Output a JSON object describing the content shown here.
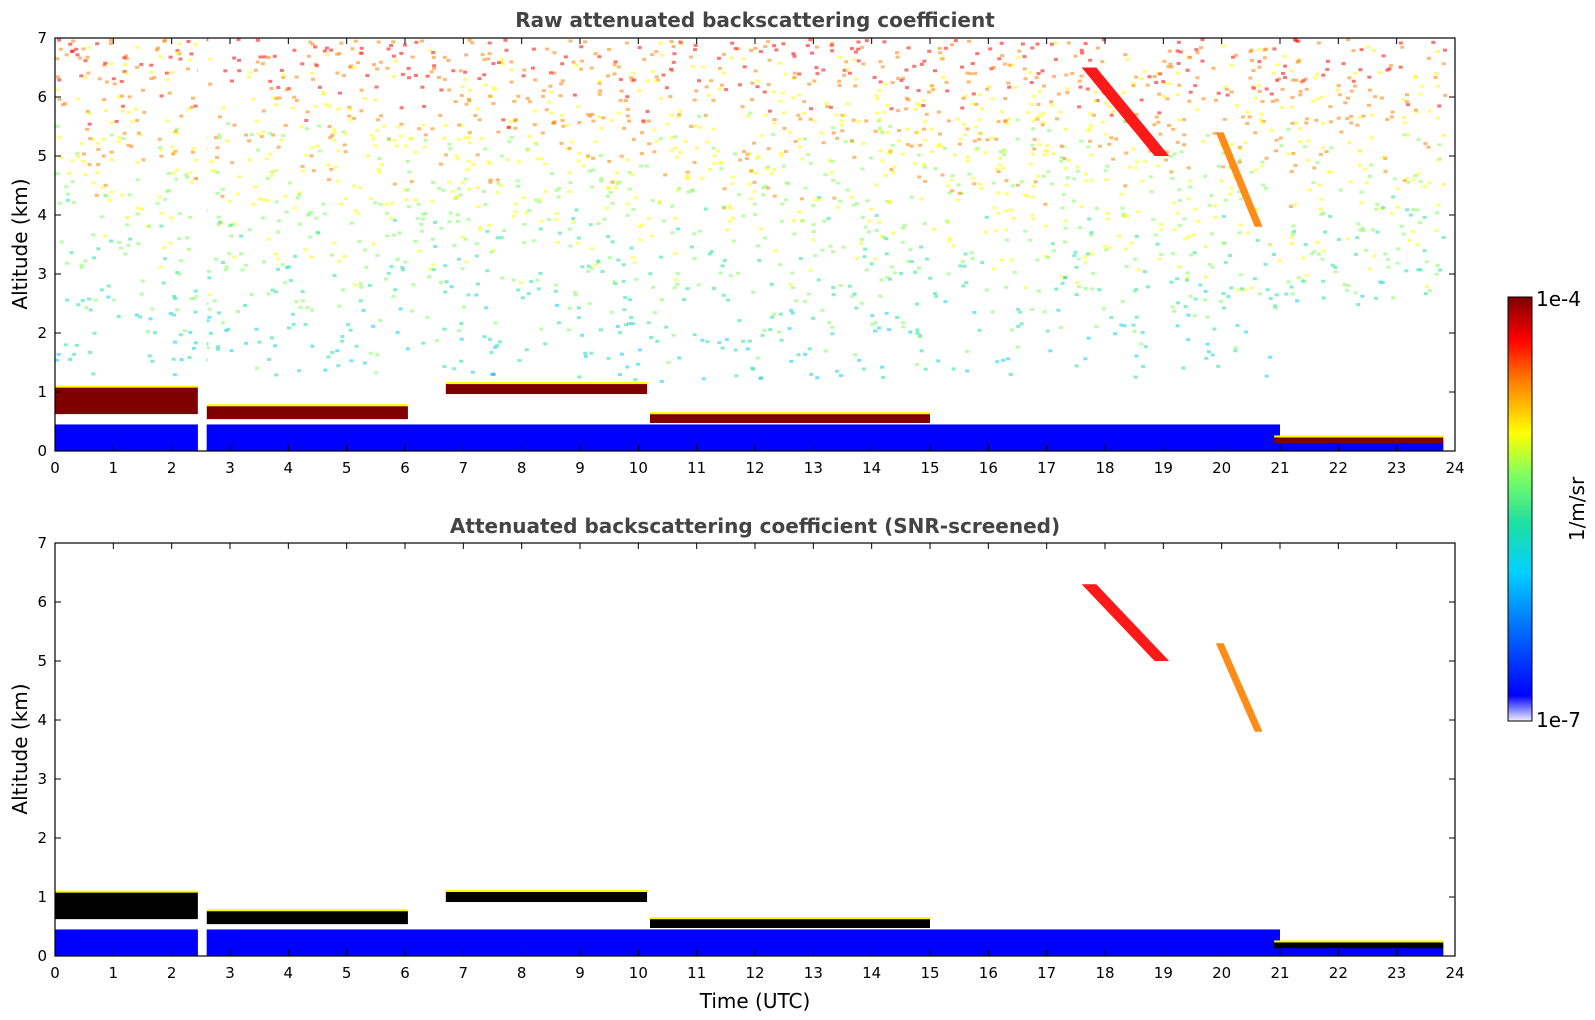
{
  "chart_data": [
    {
      "type": "heatmap",
      "title": "Raw attenuated backscattering coefficient",
      "ylabel": "Altitude (km)",
      "xlabel": "",
      "xlim": [
        0,
        24
      ],
      "ylim": [
        0,
        7
      ],
      "xticks": [
        "0",
        "1",
        "2",
        "3",
        "4",
        "5",
        "6",
        "7",
        "8",
        "9",
        "10",
        "11",
        "12",
        "13",
        "14",
        "15",
        "16",
        "17",
        "18",
        "19",
        "20",
        "21",
        "22",
        "23",
        "24"
      ],
      "yticks": [
        "0",
        "1",
        "2",
        "3",
        "4",
        "5",
        "6",
        "7"
      ],
      "screened": false,
      "features": [
        {
          "t0": 0.0,
          "t1": 2.45,
          "alt": 0.85,
          "thick": 0.45,
          "level": 0.95
        },
        {
          "t0": 2.6,
          "t1": 6.05,
          "alt": 0.65,
          "thick": 0.22,
          "level": 0.97
        },
        {
          "t0": 6.7,
          "t1": 10.15,
          "alt": 1.05,
          "thick": 0.17,
          "level": 0.97
        },
        {
          "t0": 10.2,
          "t1": 15.0,
          "alt": 0.55,
          "thick": 0.15,
          "level": 0.97
        },
        {
          "t0": 20.9,
          "t1": 23.8,
          "alt": 0.18,
          "thick": 0.1,
          "level": 0.97
        }
      ],
      "cirrus": [
        {
          "t0": 17.6,
          "t1": 19.1,
          "alt0": 6.5,
          "alt1": 5.0,
          "level": 0.85
        },
        {
          "t0": 19.9,
          "t1": 20.7,
          "alt0": 5.4,
          "alt1": 3.8,
          "level": 0.75
        }
      ]
    },
    {
      "type": "heatmap",
      "title": "Attenuated backscattering coefficient (SNR-screened)",
      "ylabel": "Altitude (km)",
      "xlabel": "Time (UTC)",
      "xlim": [
        0,
        24
      ],
      "ylim": [
        0,
        7
      ],
      "xticks": [
        "0",
        "1",
        "2",
        "3",
        "4",
        "5",
        "6",
        "7",
        "8",
        "9",
        "10",
        "11",
        "12",
        "13",
        "14",
        "15",
        "16",
        "17",
        "18",
        "19",
        "20",
        "21",
        "22",
        "23",
        "24"
      ],
      "yticks": [
        "0",
        "1",
        "2",
        "3",
        "4",
        "5",
        "6",
        "7"
      ],
      "screened": true,
      "features": [
        {
          "t0": 0.0,
          "t1": 2.45,
          "alt": 0.85,
          "thick": 0.45,
          "level": 0.95
        },
        {
          "t0": 2.6,
          "t1": 6.05,
          "alt": 0.65,
          "thick": 0.22,
          "level": 0.97
        },
        {
          "t0": 6.7,
          "t1": 10.15,
          "alt": 1.0,
          "thick": 0.17,
          "level": 0.97
        },
        {
          "t0": 10.2,
          "t1": 15.0,
          "alt": 0.55,
          "thick": 0.15,
          "level": 0.97
        },
        {
          "t0": 20.9,
          "t1": 23.8,
          "alt": 0.18,
          "thick": 0.1,
          "level": 0.97
        }
      ],
      "cirrus": [
        {
          "t0": 17.6,
          "t1": 19.1,
          "alt0": 6.3,
          "alt1": 5.0,
          "level": 0.85
        },
        {
          "t0": 19.9,
          "t1": 20.7,
          "alt0": 5.3,
          "alt1": 3.8,
          "level": 0.75
        }
      ]
    }
  ],
  "colorbar": {
    "label": "1/m/sr",
    "max_label": "1e-4",
    "min_label": "1e-7",
    "colormap": [
      "#f0f0ff",
      "#0000ff",
      "#00a0ff",
      "#00e0e0",
      "#80ff80",
      "#ffff00",
      "#ff8000",
      "#ff0000",
      "#800000"
    ]
  }
}
